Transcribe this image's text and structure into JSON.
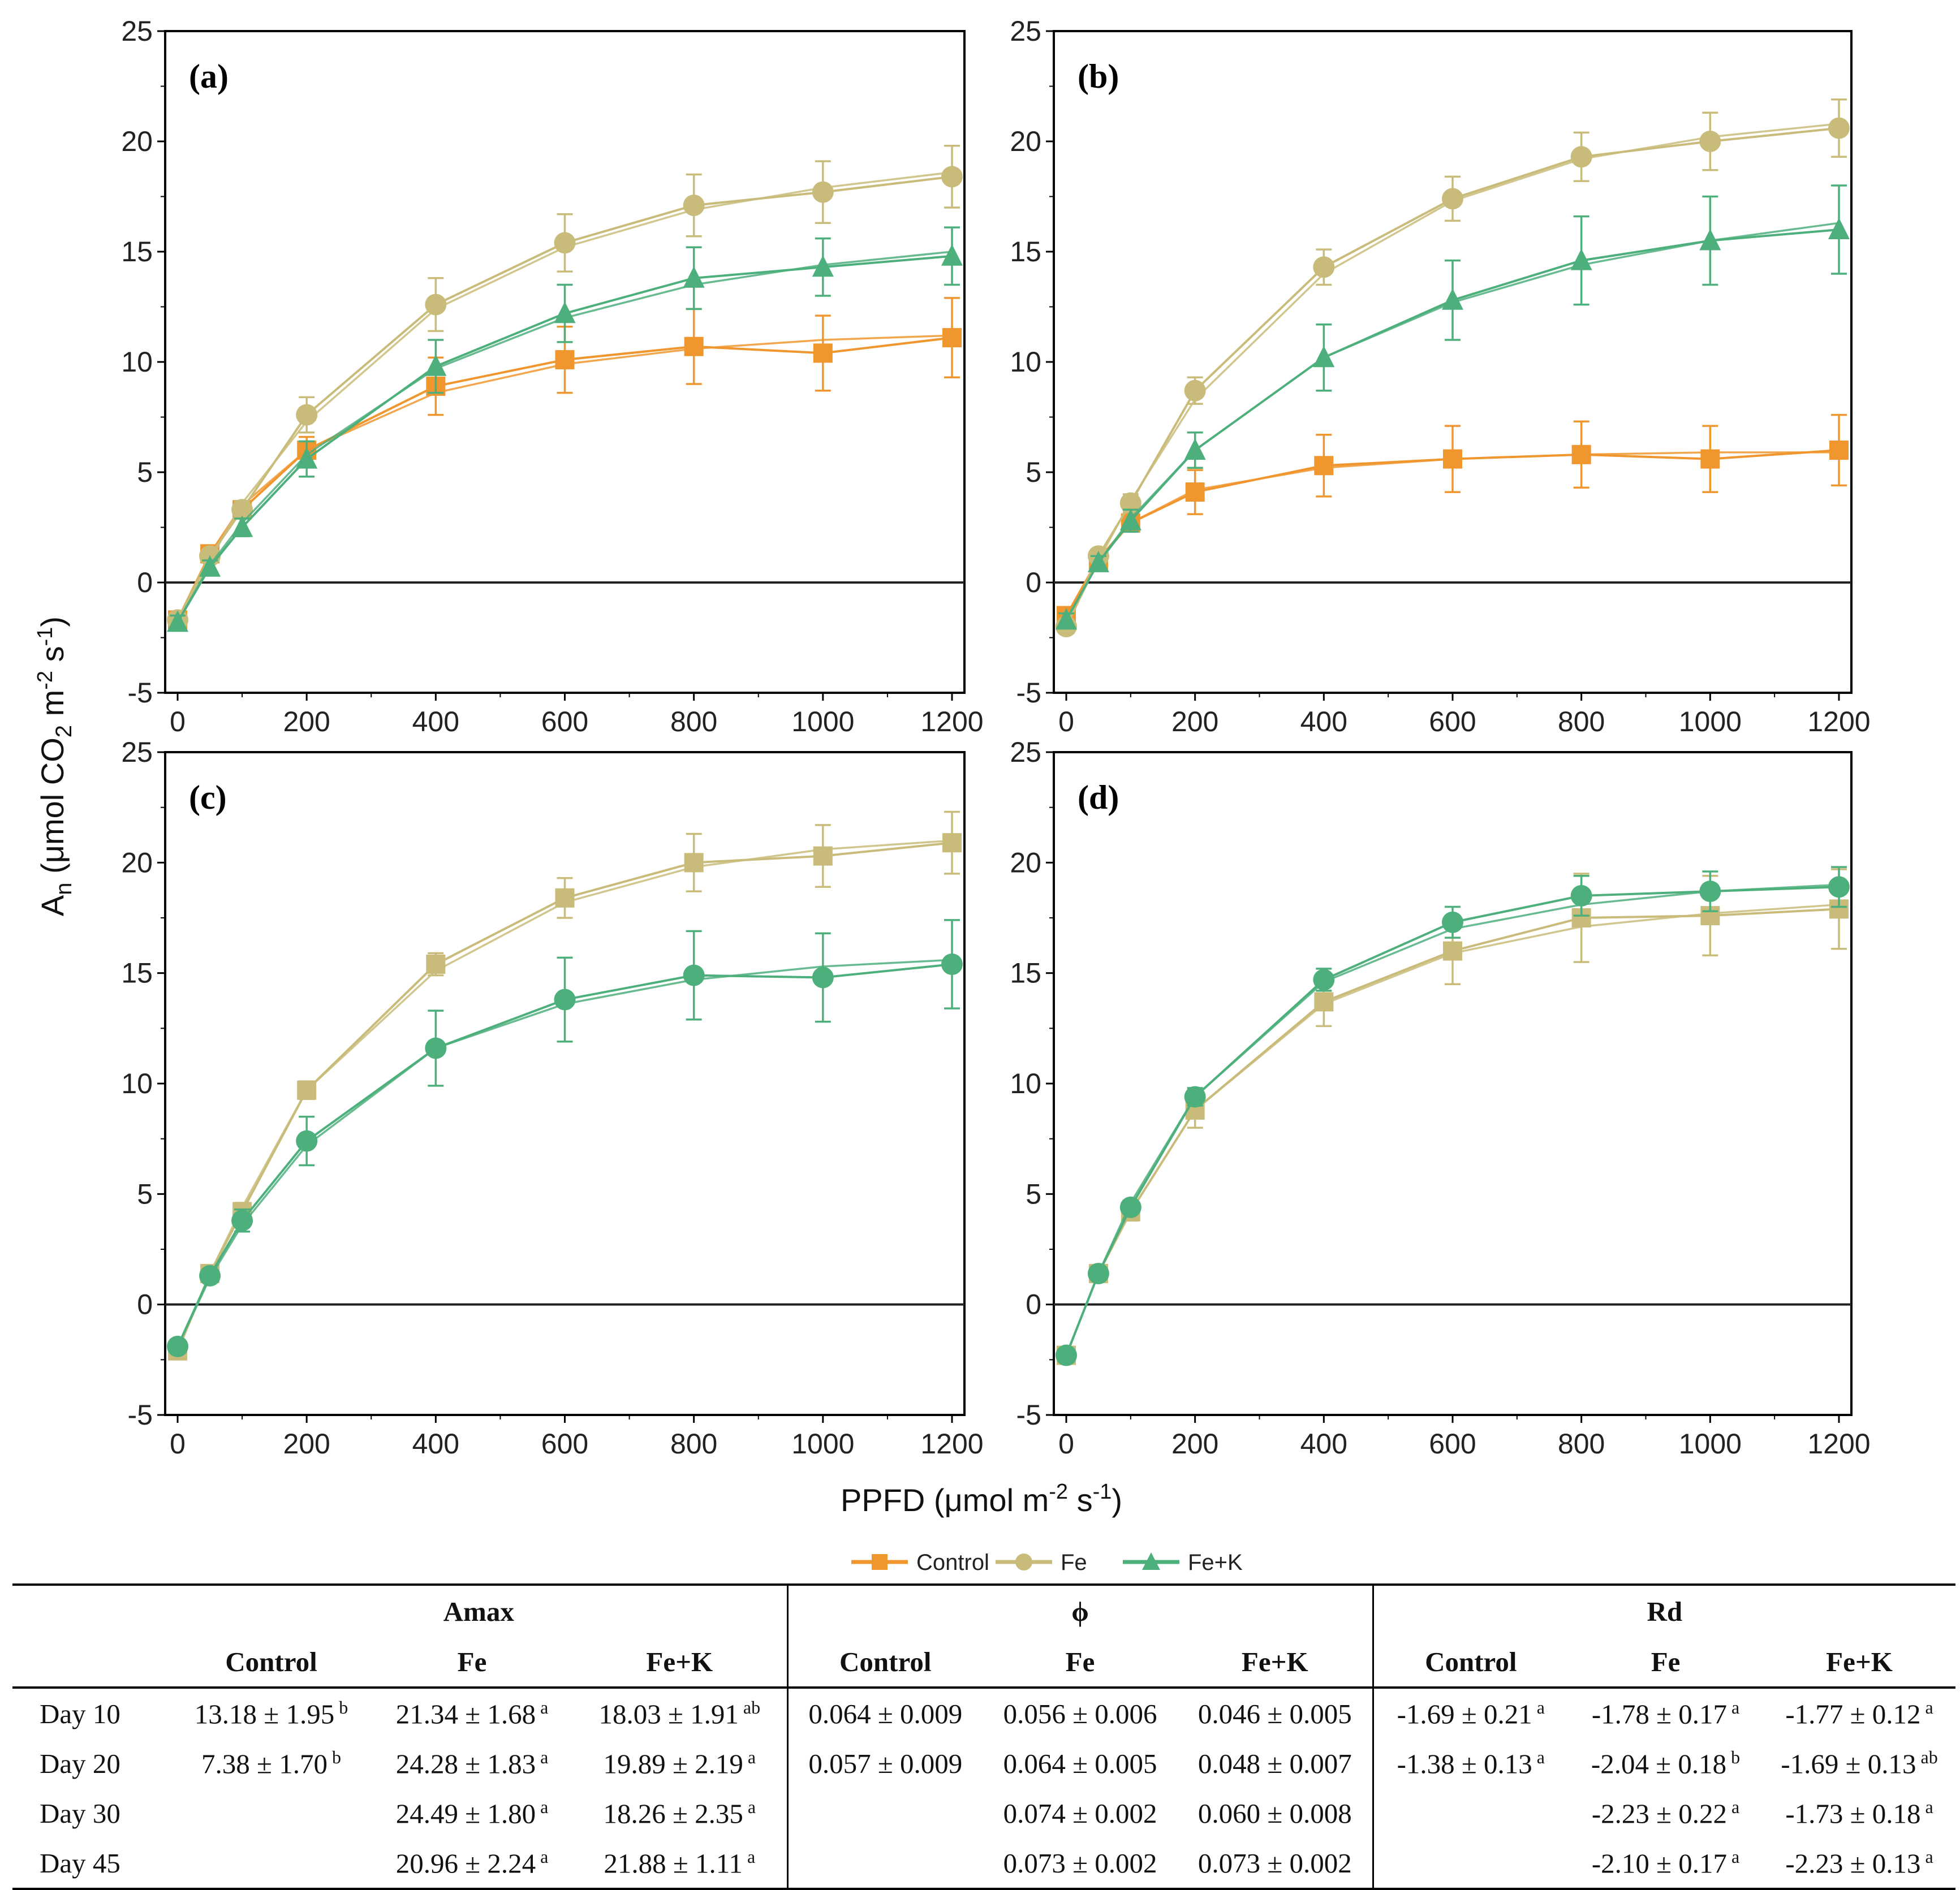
{
  "chart_data": {
    "type": "line",
    "ylabel": "An (μmol CO2 m-2 s-1)",
    "ylabel_parts": {
      "main": "A",
      "sub": "n",
      "rest1": " (μmol CO",
      "sub2": "2",
      "rest2": " m",
      "sup1": "-2",
      "rest3": " s",
      "sup2": "-1",
      "rest4": ")"
    },
    "xlabel": "PPFD (μmol m-2 s-1)",
    "xlabel_parts": {
      "rest1": "PPFD (μmol m",
      "sup1": "-2",
      "rest2": " s",
      "sup2": "-1",
      "rest3": ")"
    },
    "xlim": [
      0,
      1200
    ],
    "ylim": [
      -5,
      25
    ],
    "x_ticks": [
      "0",
      "200",
      "400",
      "600",
      "800",
      "1000",
      "1200"
    ],
    "y_ticks": [
      "-5",
      "0",
      "5",
      "10",
      "15",
      "20",
      "25"
    ],
    "x": [
      0,
      50,
      100,
      200,
      400,
      600,
      800,
      1000,
      1200
    ],
    "legend": [
      {
        "name": "Control",
        "color": "#F0962E",
        "marker": "square"
      },
      {
        "name": "Fe",
        "color": "#C9BC7A",
        "marker": "circle"
      },
      {
        "name": "Fe+K",
        "color": "#4DAF7C",
        "marker": "triangle"
      }
    ],
    "panels": [
      {
        "label": "(a)",
        "series": [
          {
            "name": "Control",
            "color": "#F0962E",
            "marker": "square",
            "values": [
              -1.7,
              1.3,
              3.3,
              6.0,
              8.9,
              10.1,
              10.7,
              10.4,
              11.1
            ],
            "errors": [
              0.3,
              0.3,
              0.4,
              0.6,
              1.3,
              1.5,
              1.7,
              1.7,
              1.8
            ],
            "fit": [
              -1.7,
              1.3,
              3.5,
              6.0,
              8.6,
              9.9,
              10.6,
              11.0,
              11.2
            ]
          },
          {
            "name": "Fe",
            "color": "#C9BC7A",
            "marker": "circle",
            "values": [
              -1.7,
              1.2,
              3.3,
              7.6,
              12.6,
              15.4,
              17.1,
              17.7,
              18.4
            ],
            "errors": [
              0.3,
              0.3,
              0.4,
              0.8,
              1.2,
              1.3,
              1.4,
              1.4,
              1.4
            ],
            "fit": [
              -1.7,
              1.0,
              3.6,
              7.3,
              12.4,
              15.2,
              16.9,
              17.9,
              18.6
            ]
          },
          {
            "name": "Fe+K",
            "color": "#4DAF7C",
            "marker": "triangle",
            "values": [
              -1.8,
              0.7,
              2.5,
              5.6,
              9.8,
              12.2,
              13.8,
              14.3,
              14.8
            ],
            "errors": [
              0.3,
              0.3,
              0.4,
              0.8,
              1.2,
              1.3,
              1.4,
              1.3,
              1.3
            ],
            "fit": [
              -1.8,
              0.8,
              2.7,
              5.8,
              9.7,
              12.0,
              13.5,
              14.4,
              15.0
            ]
          }
        ]
      },
      {
        "label": "(b)",
        "series": [
          {
            "name": "Control",
            "color": "#F0962E",
            "marker": "square",
            "values": [
              -1.5,
              1.0,
              2.7,
              4.1,
              5.3,
              5.6,
              5.8,
              5.6,
              6.0
            ],
            "errors": [
              0.3,
              0.3,
              0.4,
              1.0,
              1.4,
              1.5,
              1.5,
              1.5,
              1.6
            ],
            "fit": [
              -1.5,
              1.1,
              2.7,
              4.2,
              5.2,
              5.6,
              5.8,
              5.9,
              5.9
            ]
          },
          {
            "name": "Fe",
            "color": "#C9BC7A",
            "marker": "circle",
            "values": [
              -2.0,
              1.2,
              3.6,
              8.7,
              14.3,
              17.4,
              19.3,
              20.0,
              20.6
            ],
            "errors": [
              0.3,
              0.3,
              0.4,
              0.6,
              0.8,
              1.0,
              1.1,
              1.3,
              1.3
            ],
            "fit": [
              -2.0,
              1.0,
              3.7,
              8.3,
              14.0,
              17.3,
              19.2,
              20.2,
              20.8
            ]
          },
          {
            "name": "Fe+K",
            "color": "#4DAF7C",
            "marker": "triangle",
            "values": [
              -1.7,
              0.9,
              2.8,
              6.0,
              10.2,
              12.8,
              14.6,
              15.5,
              16.0
            ],
            "errors": [
              0.3,
              0.3,
              0.5,
              0.8,
              1.5,
              1.8,
              2.0,
              2.0,
              2.0
            ],
            "fit": [
              -1.7,
              0.9,
              2.9,
              6.0,
              10.2,
              12.7,
              14.4,
              15.5,
              16.3
            ]
          }
        ]
      },
      {
        "label": "(c)",
        "series": [
          {
            "name": "Fe",
            "color": "#C9BC7A",
            "marker": "square",
            "values": [
              -2.1,
              1.4,
              4.2,
              9.7,
              15.4,
              18.4,
              20.0,
              20.3,
              20.9
            ],
            "errors": [
              0.3,
              0.3,
              0.4,
              0.4,
              0.5,
              0.9,
              1.3,
              1.4,
              1.4
            ],
            "fit": [
              -2.1,
              1.4,
              4.4,
              9.7,
              15.1,
              18.2,
              19.8,
              20.6,
              21.0
            ]
          },
          {
            "name": "Fe+K",
            "color": "#4DAF7C",
            "marker": "circle",
            "values": [
              -1.9,
              1.3,
              3.8,
              7.4,
              11.6,
              13.8,
              14.9,
              14.8,
              15.4
            ],
            "errors": [
              0.3,
              0.3,
              0.5,
              1.1,
              1.7,
              1.9,
              2.0,
              2.0,
              2.0
            ],
            "fit": [
              -1.9,
              1.2,
              3.6,
              7.2,
              11.6,
              13.6,
              14.7,
              15.3,
              15.6
            ]
          }
        ]
      },
      {
        "label": "(d)",
        "series": [
          {
            "name": "Fe",
            "color": "#C9BC7A",
            "marker": "square",
            "values": [
              -2.3,
              1.4,
              4.2,
              8.8,
              13.7,
              16.0,
              17.5,
              17.6,
              17.9
            ],
            "errors": [
              0.3,
              0.3,
              0.4,
              0.8,
              1.1,
              1.5,
              2.0,
              1.8,
              1.8
            ],
            "fit": [
              -2.3,
              1.4,
              4.2,
              8.8,
              13.6,
              15.9,
              17.1,
              17.7,
              18.1
            ]
          },
          {
            "name": "Fe+K",
            "color": "#4DAF7C",
            "marker": "circle",
            "values": [
              -2.3,
              1.4,
              4.4,
              9.4,
              14.7,
              17.3,
              18.5,
              18.7,
              18.9
            ],
            "errors": [
              0.3,
              0.3,
              0.3,
              0.4,
              0.5,
              0.7,
              0.9,
              0.9,
              0.9
            ],
            "fit": [
              -2.3,
              1.4,
              4.6,
              9.4,
              14.6,
              17.0,
              18.1,
              18.7,
              19.0
            ]
          }
        ]
      }
    ]
  },
  "table": {
    "groups": [
      "Amax",
      "ϕ",
      "Rd"
    ],
    "columns": [
      "Control",
      "Fe",
      "Fe+K"
    ],
    "rows": [
      {
        "label": "Day 10",
        "cells": [
          {
            "v": "13.18 ± 1.95",
            "s": "b"
          },
          {
            "v": "21.34 ± 1.68",
            "s": "a"
          },
          {
            "v": "18.03 ± 1.91",
            "s": "ab"
          },
          {
            "v": "0.064 ± 0.009",
            "s": ""
          },
          {
            "v": "0.056 ± 0.006",
            "s": ""
          },
          {
            "v": "0.046 ± 0.005",
            "s": ""
          },
          {
            "v": "-1.69 ± 0.21",
            "s": "a"
          },
          {
            "v": "-1.78 ± 0.17",
            "s": "a"
          },
          {
            "v": "-1.77 ± 0.12",
            "s": "a"
          }
        ]
      },
      {
        "label": "Day 20",
        "cells": [
          {
            "v": "7.38 ± 1.70",
            "s": "b"
          },
          {
            "v": "24.28 ± 1.83",
            "s": "a"
          },
          {
            "v": "19.89 ± 2.19",
            "s": "a"
          },
          {
            "v": "0.057 ± 0.009",
            "s": ""
          },
          {
            "v": "0.064 ± 0.005",
            "s": ""
          },
          {
            "v": "0.048 ± 0.007",
            "s": ""
          },
          {
            "v": "-1.38 ± 0.13",
            "s": "a"
          },
          {
            "v": "-2.04 ± 0.18",
            "s": "b"
          },
          {
            "v": "-1.69 ± 0.13",
            "s": "ab"
          }
        ]
      },
      {
        "label": "Day 30",
        "cells": [
          {
            "v": "",
            "s": ""
          },
          {
            "v": "24.49 ± 1.80",
            "s": "a"
          },
          {
            "v": "18.26 ± 2.35",
            "s": "a"
          },
          {
            "v": "",
            "s": ""
          },
          {
            "v": "0.074 ± 0.002",
            "s": ""
          },
          {
            "v": "0.060 ± 0.008",
            "s": ""
          },
          {
            "v": "",
            "s": ""
          },
          {
            "v": "-2.23 ± 0.22",
            "s": "a"
          },
          {
            "v": "-1.73 ± 0.18",
            "s": "a"
          }
        ]
      },
      {
        "label": "Day 45",
        "cells": [
          {
            "v": "",
            "s": ""
          },
          {
            "v": "20.96 ± 2.24",
            "s": "a"
          },
          {
            "v": "21.88 ± 1.11",
            "s": "a"
          },
          {
            "v": "",
            "s": ""
          },
          {
            "v": "0.073 ± 0.002",
            "s": ""
          },
          {
            "v": "0.073 ± 0.002",
            "s": ""
          },
          {
            "v": "",
            "s": ""
          },
          {
            "v": "-2.10 ± 0.17",
            "s": "a"
          },
          {
            "v": "-2.23 ± 0.13",
            "s": "a"
          }
        ]
      }
    ]
  }
}
